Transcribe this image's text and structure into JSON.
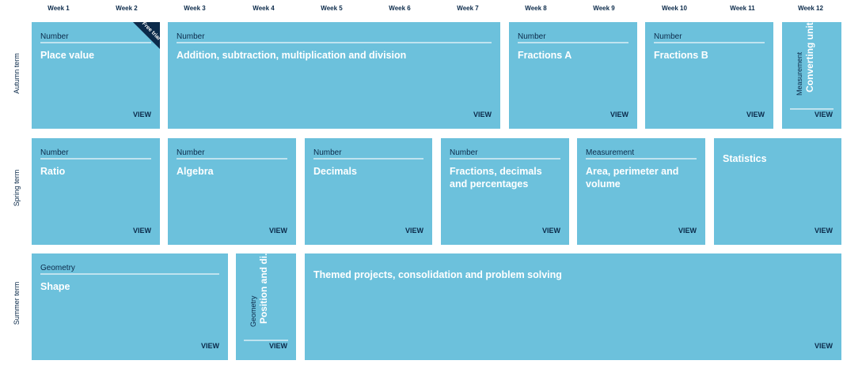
{
  "weeks": [
    "Week 1",
    "Week 2",
    "Week 3",
    "Week 4",
    "Week 5",
    "Week 6",
    "Week 7",
    "Week 8",
    "Week 9",
    "Week 10",
    "Week 11",
    "Week 12"
  ],
  "terms": {
    "autumn": "Autumn term",
    "spring": "Spring term",
    "summer": "Summer term"
  },
  "view_label": "VIEW",
  "badge": "Free trial",
  "autumn": [
    {
      "strand": "Number",
      "title": "Place value"
    },
    {
      "strand": "Number",
      "title": "Addition, subtraction, multiplication and division"
    },
    {
      "strand": "Number",
      "title": "Fractions A"
    },
    {
      "strand": "Number",
      "title": "Fractions B"
    },
    {
      "strand": "Measurement",
      "title": "Converting units"
    }
  ],
  "spring": [
    {
      "strand": "Number",
      "title": "Ratio"
    },
    {
      "strand": "Number",
      "title": "Algebra"
    },
    {
      "strand": "Number",
      "title": "Decimals"
    },
    {
      "strand": "Number",
      "title": "Fractions, decimals and percentages"
    },
    {
      "strand": "Measurement",
      "title": "Area, perimeter and volume"
    },
    {
      "strand": "",
      "title": "Statistics"
    }
  ],
  "summer": [
    {
      "strand": "Geometry",
      "title": "Shape"
    },
    {
      "strand": "Geometry",
      "title": "Position and di..."
    },
    {
      "strand": "",
      "title": "Themed projects, consolidation and problem solving"
    }
  ],
  "colors": {
    "block": "#6cc1dc",
    "navy": "#0b2a4a",
    "rule": "#bfe3ef"
  }
}
